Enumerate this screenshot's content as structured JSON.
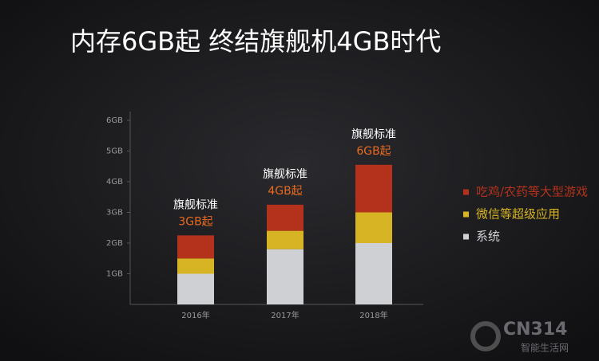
{
  "chart_data": {
    "type": "stacked_bar",
    "title": "内存6GB起 终结旗舰机4GB时代",
    "categories": [
      "2016年",
      "2017年",
      "2018年"
    ],
    "series": [
      {
        "name": "系统",
        "color": "#cfd0d4",
        "values": [
          1.0,
          1.8,
          2.0
        ]
      },
      {
        "name": "微信等超级应用",
        "color": "#d6b424",
        "values": [
          0.5,
          0.6,
          1.0
        ]
      },
      {
        "name": "吃鸡/农药等大型游戏",
        "color": "#b4321c",
        "values": [
          0.75,
          0.85,
          1.55
        ]
      }
    ],
    "legend_order": [
      2,
      1,
      0
    ],
    "annotations": [
      {
        "text": "旗舰标准",
        "value_text": "3GB起"
      },
      {
        "text": "旗舰标准",
        "value_text": "4GB起"
      },
      {
        "text": "旗舰标准",
        "value_text": "6GB起"
      }
    ],
    "ylim": [
      0,
      6
    ],
    "yticks": [
      {
        "value": 1,
        "label": "1GB"
      },
      {
        "value": 2,
        "label": "2GB"
      },
      {
        "value": 3,
        "label": "3GB"
      },
      {
        "value": 4,
        "label": "4GB"
      },
      {
        "value": 5,
        "label": "5GB"
      },
      {
        "value": 6,
        "label": "6GB"
      }
    ],
    "watermark": {
      "logo": "CN314",
      "sub": "智能生活网"
    }
  }
}
